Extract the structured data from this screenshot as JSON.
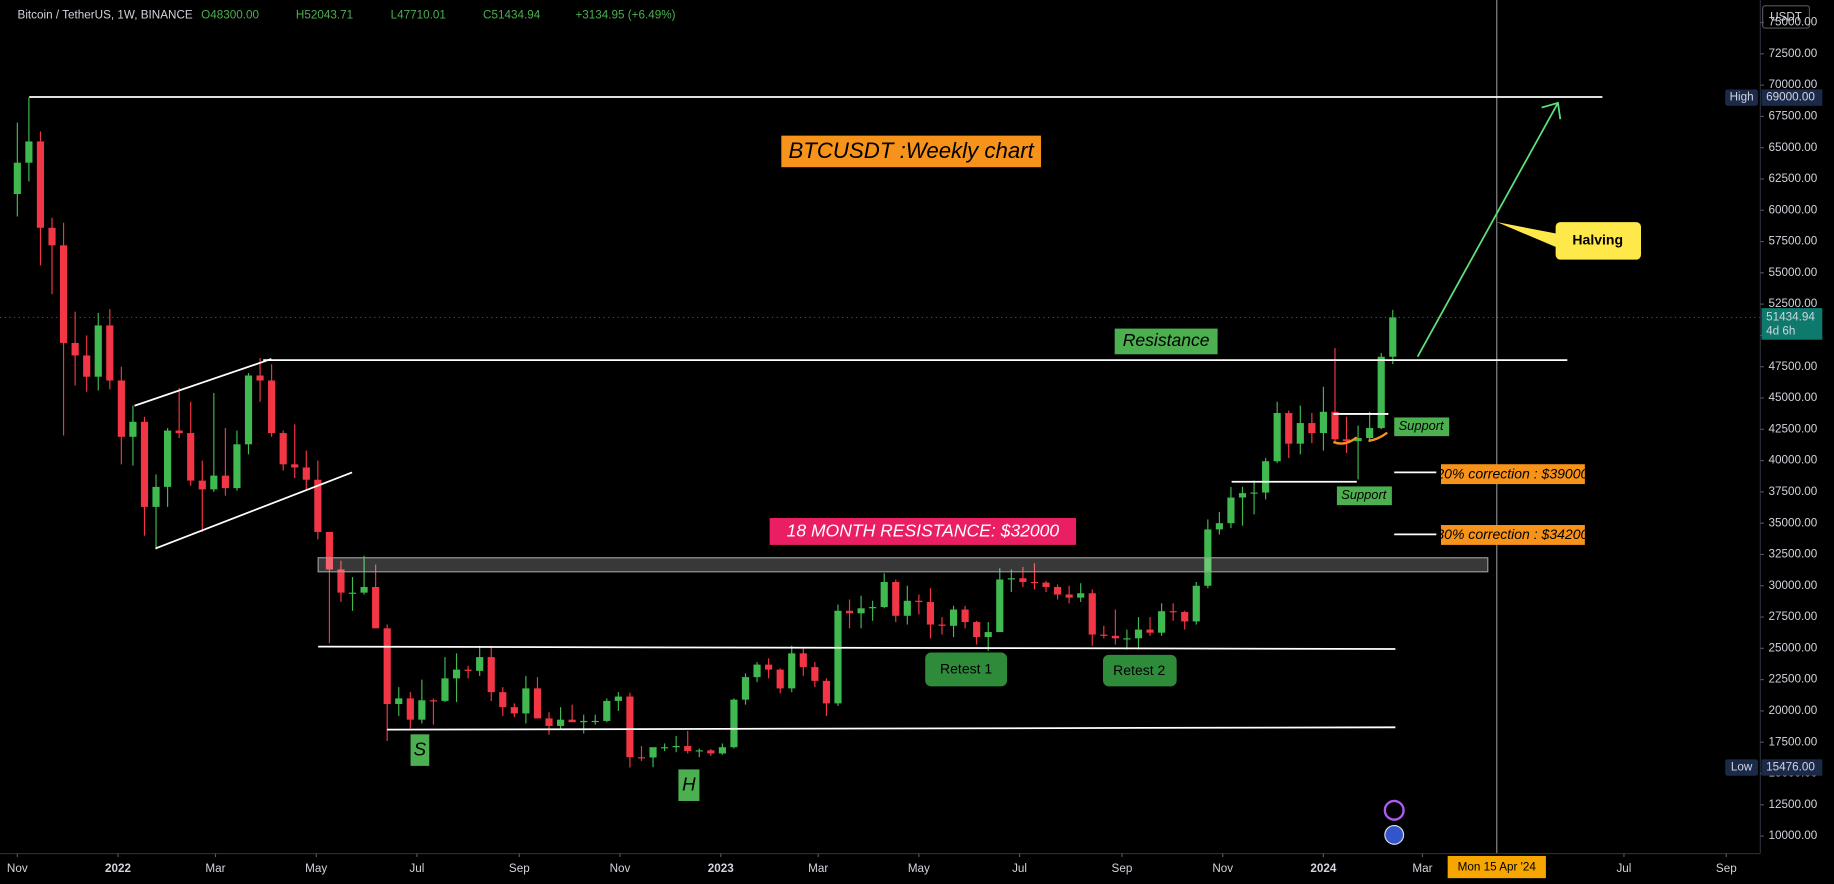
{
  "chart_data": {
    "type": "candlestick",
    "header": {
      "symbol": "Bitcoin / TetherUS, 1W, BINANCE",
      "open": "O48300.00",
      "high": "H52043.71",
      "low": "L47710.01",
      "close": "C51434.94",
      "change": "+3134.95 (+6.49%)"
    },
    "currency": "USDT",
    "up_color": "#3fb950",
    "down_color": "#f23645",
    "candles": [
      [
        61300,
        67000,
        59500,
        63800
      ],
      [
        63800,
        69000,
        62300,
        65500
      ],
      [
        65500,
        66300,
        55600,
        58600
      ],
      [
        58600,
        59400,
        53300,
        57200
      ],
      [
        57200,
        59000,
        42000,
        49400
      ],
      [
        49400,
        51900,
        46000,
        48400
      ],
      [
        48400,
        50000,
        45500,
        46700
      ],
      [
        46700,
        51800,
        45600,
        50800
      ],
      [
        50800,
        52100,
        45700,
        46400
      ],
      [
        46400,
        47500,
        39700,
        41900
      ],
      [
        41900,
        44400,
        39600,
        43100
      ],
      [
        43100,
        43500,
        34000,
        36300
      ],
      [
        36300,
        38900,
        32900,
        37900
      ],
      [
        37900,
        42600,
        36300,
        42400
      ],
      [
        42400,
        45800,
        41800,
        42200
      ],
      [
        42200,
        44700,
        38000,
        38400
      ],
      [
        38400,
        40000,
        34300,
        37700
      ],
      [
        37700,
        45400,
        37500,
        38800
      ],
      [
        38800,
        42600,
        37200,
        37800
      ],
      [
        37800,
        42400,
        37600,
        41300
      ],
      [
        41300,
        47000,
        40500,
        46800
      ],
      [
        46800,
        48200,
        44700,
        46400
      ],
      [
        46400,
        47700,
        41900,
        42200
      ],
      [
        42200,
        42400,
        39200,
        39700
      ],
      [
        39700,
        42900,
        38600,
        39450
      ],
      [
        39450,
        40800,
        37600,
        38470
      ],
      [
        38470,
        40000,
        33700,
        34300
      ],
      [
        34300,
        34300,
        25400,
        31300
      ],
      [
        31300,
        32000,
        28700,
        29450
      ],
      [
        29450,
        30700,
        28000,
        29450
      ],
      [
        29450,
        32400,
        29300,
        29900
      ],
      [
        29900,
        31700,
        26600,
        26600
      ],
      [
        26600,
        26900,
        17600,
        20550
      ],
      [
        20550,
        21900,
        19600,
        21000
      ],
      [
        21000,
        21500,
        18600,
        19300
      ],
      [
        19300,
        22500,
        19000,
        20850
      ],
      [
        20850,
        21000,
        18900,
        20800
      ],
      [
        20800,
        24300,
        20700,
        22600
      ],
      [
        22600,
        24600,
        20700,
        23300
      ],
      [
        23300,
        23600,
        22600,
        23200
      ],
      [
        23200,
        25200,
        22800,
        24300
      ],
      [
        24300,
        25200,
        20800,
        21500
      ],
      [
        21500,
        21900,
        19600,
        20300
      ],
      [
        20300,
        20600,
        19500,
        19800
      ],
      [
        19800,
        22800,
        19000,
        21800
      ],
      [
        21800,
        22700,
        19400,
        19400
      ],
      [
        19400,
        19900,
        18100,
        18800
      ],
      [
        18800,
        20300,
        18500,
        19300
      ],
      [
        19300,
        20500,
        19100,
        19100
      ],
      [
        19100,
        19700,
        18200,
        19200
      ],
      [
        19200,
        19700,
        18900,
        19200
      ],
      [
        19200,
        21000,
        19100,
        20800
      ],
      [
        20800,
        21500,
        20000,
        21150
      ],
      [
        21150,
        21450,
        15476,
        16300
      ],
      [
        16300,
        17200,
        16000,
        16280
      ],
      [
        16280,
        17000,
        15500,
        17100
      ],
      [
        17100,
        17400,
        16800,
        17100
      ],
      [
        17100,
        18000,
        16700,
        17200
      ],
      [
        17200,
        18400,
        16600,
        16800
      ],
      [
        16800,
        17000,
        16300,
        16850
      ],
      [
        16850,
        16950,
        16400,
        16600
      ],
      [
        16600,
        17400,
        16500,
        17100
      ],
      [
        17100,
        21000,
        17000,
        20900
      ],
      [
        20900,
        23000,
        20500,
        22700
      ],
      [
        22700,
        23900,
        22300,
        23700
      ],
      [
        23700,
        24200,
        22600,
        23300
      ],
      [
        23300,
        23400,
        21400,
        21800
      ],
      [
        21800,
        25200,
        21500,
        24600
      ],
      [
        24600,
        25000,
        22800,
        23500
      ],
      [
        23500,
        23900,
        21900,
        22400
      ],
      [
        22400,
        22600,
        19600,
        20600
      ],
      [
        20600,
        28500,
        20400,
        28000
      ],
      [
        28000,
        28900,
        26600,
        27800
      ],
      [
        27800,
        29200,
        26600,
        28200
      ],
      [
        28200,
        28800,
        27200,
        28300
      ],
      [
        28300,
        31000,
        28200,
        30300
      ],
      [
        30300,
        30500,
        27100,
        27600
      ],
      [
        27600,
        30000,
        26900,
        28800
      ],
      [
        28800,
        29300,
        27700,
        28700
      ],
      [
        28700,
        29800,
        25800,
        26900
      ],
      [
        26900,
        27500,
        26100,
        26800
      ],
      [
        26800,
        28400,
        25900,
        28100
      ],
      [
        28100,
        28400,
        26600,
        27100
      ],
      [
        27100,
        27200,
        25300,
        25900
      ],
      [
        25900,
        27100,
        24800,
        26300
      ],
      [
        26300,
        31400,
        26300,
        30500
      ],
      [
        30500,
        31300,
        29500,
        30600
      ],
      [
        30600,
        31500,
        29900,
        30300
      ],
      [
        30300,
        31800,
        29700,
        30250
      ],
      [
        30250,
        30400,
        29500,
        29900
      ],
      [
        29900,
        30100,
        28900,
        29300
      ],
      [
        29300,
        30000,
        28600,
        29050
      ],
      [
        29050,
        30200,
        28700,
        29400
      ],
      [
        29400,
        29700,
        25200,
        26100
      ],
      [
        26100,
        26800,
        25800,
        26000
      ],
      [
        26000,
        28100,
        25300,
        25800
      ],
      [
        25800,
        26500,
        24900,
        25800
      ],
      [
        25800,
        27500,
        24900,
        26500
      ],
      [
        26500,
        27500,
        26000,
        26250
      ],
      [
        26250,
        28600,
        26000,
        27970
      ],
      [
        27970,
        28600,
        27200,
        27900
      ],
      [
        27900,
        28000,
        26500,
        27150
      ],
      [
        27150,
        30300,
        26900,
        30000
      ],
      [
        30000,
        35300,
        29800,
        34500
      ],
      [
        34500,
        35900,
        34100,
        35000
      ],
      [
        35000,
        37900,
        34600,
        37050
      ],
      [
        37050,
        37900,
        34800,
        37400
      ],
      [
        37400,
        38400,
        35700,
        37450
      ],
      [
        37450,
        40200,
        36900,
        39950
      ],
      [
        39950,
        44700,
        39800,
        43800
      ],
      [
        43800,
        44000,
        40200,
        41350
      ],
      [
        41350,
        44400,
        40500,
        43000
      ],
      [
        43000,
        43800,
        41400,
        42200
      ],
      [
        42200,
        45900,
        40800,
        43900
      ],
      [
        43900,
        49000,
        41500,
        41700
      ],
      [
        41700,
        43500,
        40600,
        41550
      ],
      [
        41550,
        42800,
        38500,
        41800
      ],
      [
        41800,
        43900,
        41500,
        42600
      ],
      [
        42600,
        48600,
        42500,
        48300
      ],
      [
        48300,
        52043.71,
        47710.01,
        51434.94
      ]
    ],
    "xlim": [
      -1.5,
      150.8
    ],
    "xticks": [
      {
        "value": 0,
        "label": "Nov"
      },
      {
        "value": 8.71,
        "label": "2022"
      },
      {
        "value": 17.14,
        "label": "Mar"
      },
      {
        "value": 25.86,
        "label": "May"
      },
      {
        "value": 34.57,
        "label": "Jul"
      },
      {
        "value": 43.43,
        "label": "Sep"
      },
      {
        "value": 52.14,
        "label": "Nov"
      },
      {
        "value": 60.86,
        "label": "2023"
      },
      {
        "value": 69.29,
        "label": "Mar"
      },
      {
        "value": 78,
        "label": "May"
      },
      {
        "value": 86.71,
        "label": "Jul"
      },
      {
        "value": 95.57,
        "label": "Sep"
      },
      {
        "value": 104.29,
        "label": "Nov"
      },
      {
        "value": 113,
        "label": "2024"
      },
      {
        "value": 121.57,
        "label": "Mar"
      },
      {
        "value": 139,
        "label": "Jul"
      },
      {
        "value": 147.86,
        "label": "Sep"
      }
    ],
    "ylim": [
      8600,
      76800
    ],
    "yticks": [
      {
        "value": 10000,
        "label": "10000.00"
      },
      {
        "value": 12500,
        "label": "12500.00"
      },
      {
        "value": 15000,
        "label": "15000.00"
      },
      {
        "value": 17500,
        "label": "17500.00"
      },
      {
        "value": 20000,
        "label": "20000.00"
      },
      {
        "value": 22500,
        "label": "22500.00"
      },
      {
        "value": 25000,
        "label": "25000.00"
      },
      {
        "value": 27500,
        "label": "27500.00"
      },
      {
        "value": 30000,
        "label": "30000.00"
      },
      {
        "value": 32500,
        "label": "32500.00"
      },
      {
        "value": 35000,
        "label": "35000.00"
      },
      {
        "value": 37500,
        "label": "37500.00"
      },
      {
        "value": 40000,
        "label": "40000.00"
      },
      {
        "value": 42500,
        "label": "42500.00"
      },
      {
        "value": 45000,
        "label": "45000.00"
      },
      {
        "value": 47500,
        "label": "47500.00"
      },
      {
        "value": 50000,
        "label": "50000.00"
      },
      {
        "value": 52500,
        "label": "52500.00"
      },
      {
        "value": 55000,
        "label": "55000.00"
      },
      {
        "value": 57500,
        "label": "57500.00"
      },
      {
        "value": 60000,
        "label": "60000.00"
      },
      {
        "value": 62500,
        "label": "62500.00"
      },
      {
        "value": 65000,
        "label": "65000.00"
      },
      {
        "value": 67500,
        "label": "67500.00"
      },
      {
        "value": 70000,
        "label": "70000.00"
      },
      {
        "value": 72500,
        "label": "72500.00"
      },
      {
        "value": 75000,
        "label": "75000.00"
      }
    ],
    "high_marker": {
      "label": "High",
      "value": 69000,
      "value_label": "69000.00"
    },
    "low_marker": {
      "label": "Low",
      "value": 15476,
      "value_label": "15476.00"
    },
    "countdown": "4d 6h",
    "crosshair": {
      "value": 128,
      "label": "Mon 15 Apr '24"
    },
    "annotations": {
      "title": "BTCUSDT :Weekly chart",
      "resistance": "Resistance",
      "support_1": "Support",
      "support_2": "Support",
      "correction_20": "20% correction : $39000",
      "correction_30": "30% correction : $34200",
      "month_resistance": "18 MONTH RESISTANCE: $32000",
      "retest_1": "Retest 1",
      "retest_2": "Retest 2",
      "shoulder": "S",
      "head": "H",
      "halving": "Halving"
    }
  }
}
